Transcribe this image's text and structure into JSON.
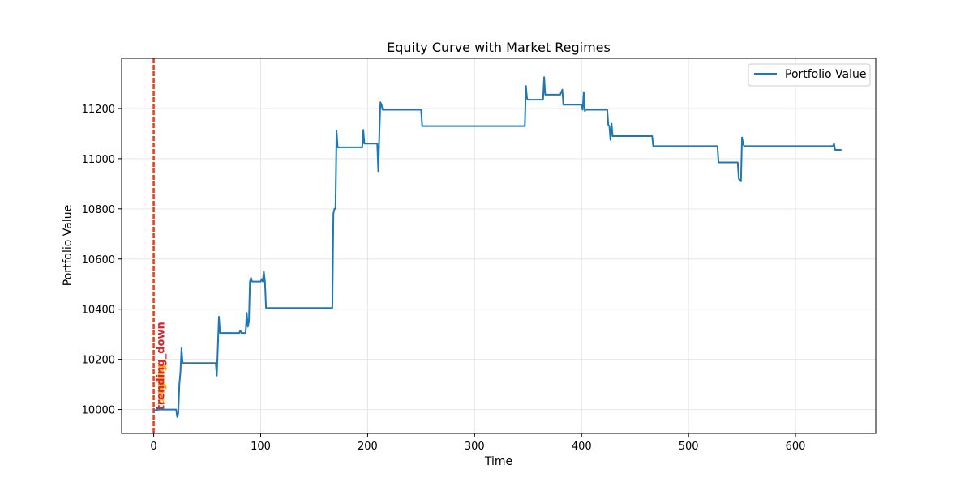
{
  "chart_data": {
    "type": "line",
    "title": "Equity Curve with Market Regimes",
    "xlabel": "Time",
    "ylabel": "Portfolio Value",
    "xlim": [
      -30,
      675
    ],
    "ylim": [
      9905,
      11400
    ],
    "xticks": [
      0,
      100,
      200,
      300,
      400,
      500,
      600
    ],
    "yticks": [
      10000,
      10200,
      10400,
      10600,
      10800,
      11000,
      11200
    ],
    "grid": true,
    "legend_position": "top-right",
    "series": [
      {
        "name": "Portfolio Value",
        "color": "#1f77b4",
        "x": [
          0,
          2,
          4,
          10,
          21,
          22,
          23,
          24,
          25,
          26,
          27,
          58,
          59,
          60,
          61,
          62,
          63,
          80,
          81,
          82,
          86,
          87,
          88,
          89,
          90,
          91,
          92,
          100,
          101,
          102,
          103,
          104,
          105,
          106,
          167,
          168,
          169,
          170,
          171,
          172,
          195,
          196,
          197,
          209,
          210,
          211,
          212,
          213,
          214,
          250,
          251,
          347,
          348,
          349,
          350,
          364,
          365,
          366,
          367,
          380,
          381,
          382,
          383,
          384,
          400,
          401,
          402,
          403,
          404,
          405,
          424,
          425,
          426,
          427,
          428,
          429,
          466,
          467,
          527,
          528,
          546,
          547,
          548,
          549,
          550,
          551,
          552,
          635,
          636,
          637,
          638,
          643
        ],
        "values": [
          10000,
          9995,
          10000,
          10000,
          10000,
          9970,
          9985,
          10100,
          10150,
          10245,
          10185,
          10185,
          10135,
          10250,
          10370,
          10305,
          10305,
          10305,
          10315,
          10305,
          10305,
          10385,
          10330,
          10350,
          10510,
          10525,
          10510,
          10510,
          10520,
          10510,
          10550,
          10510,
          10405,
          10405,
          10405,
          10780,
          10800,
          10800,
          11110,
          11045,
          11045,
          11115,
          11060,
          11060,
          10950,
          11100,
          11225,
          11215,
          11195,
          11195,
          11130,
          11130,
          11290,
          11240,
          11235,
          11235,
          11325,
          11255,
          11255,
          11255,
          11265,
          11275,
          11215,
          11215,
          11215,
          11195,
          11265,
          11190,
          11195,
          11195,
          11195,
          11135,
          11130,
          11075,
          11140,
          11090,
          11090,
          11050,
          11050,
          10985,
          10985,
          10920,
          10915,
          10910,
          11085,
          11060,
          11050,
          11050,
          11060,
          11035,
          11035,
          11035
        ]
      }
    ],
    "regimes": [
      {
        "label": "ranging",
        "x": 0,
        "color": "#ffa500"
      },
      {
        "label": "trending_down",
        "x": 0,
        "color": "#d62728"
      }
    ]
  }
}
